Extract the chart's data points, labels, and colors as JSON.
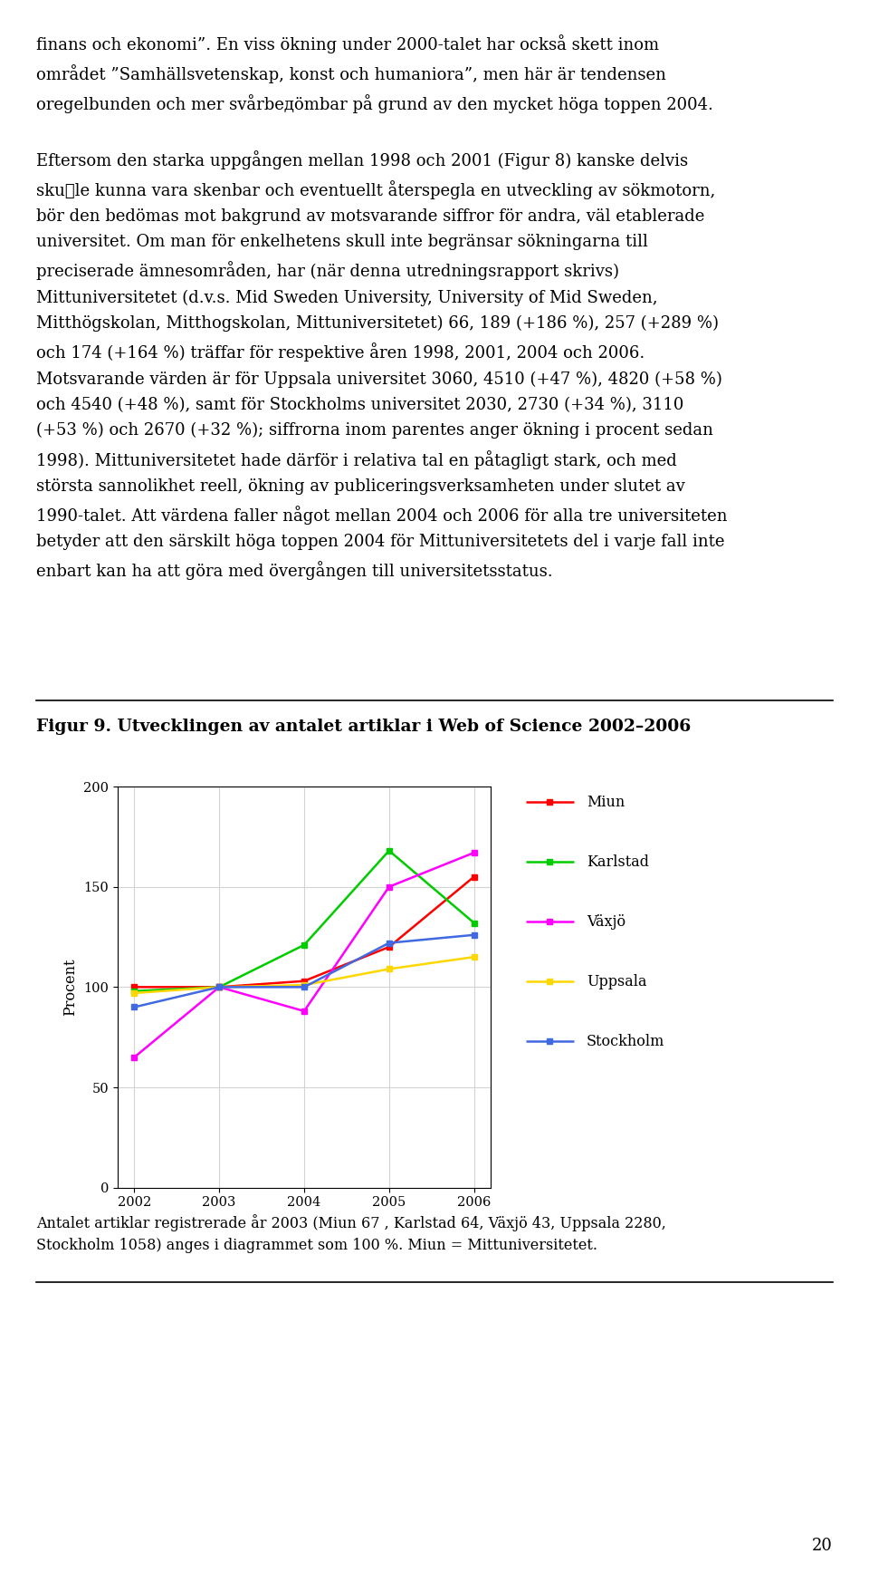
{
  "title_figure": "Figur 9. Utvecklingen av antalet artiklar i Web of Science 2002–2006",
  "ylabel": "Procent",
  "years": [
    2002,
    2003,
    2004,
    2005,
    2006
  ],
  "series": {
    "Miun": [
      100,
      100,
      103,
      120,
      155
    ],
    "Karlstad": [
      98,
      100,
      121,
      168,
      132
    ],
    "Växjö": [
      65,
      100,
      88,
      150,
      167
    ],
    "Uppsala": [
      97,
      100,
      101,
      109,
      115
    ],
    "Stockholm": [
      90,
      100,
      100,
      122,
      126
    ]
  },
  "colors": {
    "Miun": "#FF0000",
    "Karlstad": "#00CC00",
    "Växjö": "#FF00FF",
    "Uppsala": "#FFD700",
    "Stockholm": "#4169E1"
  },
  "ylim": [
    0,
    200
  ],
  "yticks": [
    0,
    50,
    100,
    150,
    200
  ],
  "xticks": [
    2002,
    2003,
    2004,
    2005,
    2006
  ],
  "page_text_top": "finans och ekonomi”. En viss ökning under 2000-talet har också skett inom\nområdet ”Samhällsvetenskap, konst och humaniora”, men här är tendensen\noregelbunden och mer svårbедömbar på grund av den mycket höga toppen 2004.\n\nEftersom den starka uppgången mellan 1998 och 2001 (Figur 8) kanske delvis\nsku\u0000le kunna vara skenbar och eventuellt återspegla en utveckling av sökmotorn,\nbör den bedömas mot bakgrund av motsvarande siffror för andra, väl etablerade\nuniversitet. Om man för enkelhetens skull inte begränsar sökningarna till\npreciserade ämnesområden, har (när denna utredningsrapport skrivs)\nMittuniversitetet (d.v.s. Mid Sweden University, University of Mid Sweden,\nMitthögskolan, Mitthogskolan, Mittuniversitetet) 66, 189 (+186 %), 257 (+289 %)\noch 174 (+164 %) träffar för respektive åren 1998, 2001, 2004 och 2006.\nMotsvarande värden är för Uppsala universitet 3060, 4510 (+47 %), 4820 (+58 %)\noch 4540 (+48 %), samt för Stockholms universitet 2030, 2730 (+34 %), 3110\n(+53 %) och 2670 (+32 %); siffrorna inom parentes anger ökning i procent sedan\n1998). Mittuniversitetet hade därför i relativa tal en påtagligt stark, och med\nstörsta sannolikhet reell, ökning av publiceringsverksamheten under slutet av\n1990-talet. Att värdena faller något mellan 2004 och 2006 för alla tre universiteten\nbetyder att den särskilt höga toppen 2004 för Mittuniversitetets del i varje fall inte\nenbart kan ha att göra med övergången till universitetsstatus.",
  "caption_text": "Antalet artiklar registrerade år 2003 (Miun 67 , Karlstad 64, Växjö 43, Uppsala 2280,\nStockholm 1058) anges i diagrammet som 100 %. Miun = Mittuniversitetet.",
  "page_number": "20"
}
